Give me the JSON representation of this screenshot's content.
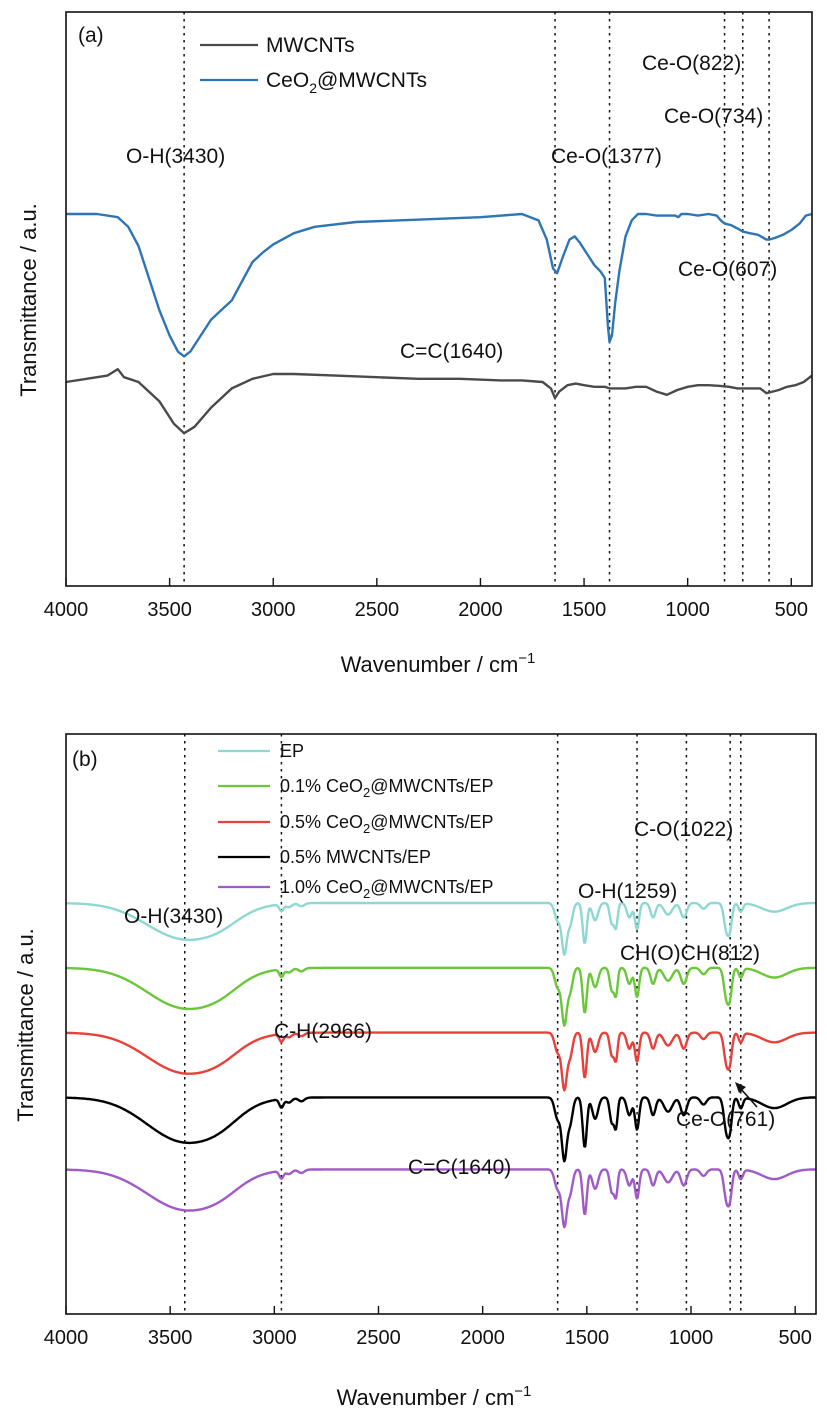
{
  "chart_data": [
    {
      "type": "line",
      "panel_label": "(a)",
      "xlabel": "Wavenumber / cm",
      "xlabel_sup": "−1",
      "ylabel": "Transmittance / a.u.",
      "xlim": [
        4000,
        400
      ],
      "x_reversed": true,
      "yticks_shown": false,
      "grid": false,
      "legend_position": "top-left",
      "x_ticks": [
        4000,
        3500,
        3000,
        2500,
        2000,
        1500,
        1000,
        500
      ],
      "x_tick_labels": [
        "4000",
        "3500",
        "3000",
        "2500",
        "2000",
        "1500",
        "1000",
        "500"
      ],
      "legend": [
        {
          "name": "MWCNTs",
          "color": "#4a4a4a"
        },
        {
          "name_main": "CeO",
          "name_sub": "2",
          "name_rest": "@MWCNTs",
          "color": "#2e75b6"
        }
      ],
      "reference_lines": [
        3430,
        1640,
        1377,
        822,
        734,
        607
      ],
      "annotations": [
        {
          "text": "O-H(3430)",
          "x": 3430
        },
        {
          "text": "Ce-O(1377)",
          "x": 1377
        },
        {
          "text": "Ce-O(822)",
          "x": 822
        },
        {
          "text": "Ce-O(734)",
          "x": 734
        },
        {
          "text": "Ce-O(607)",
          "x": 607
        },
        {
          "text": "C=C(1640)",
          "x": 1640
        }
      ],
      "series": [
        {
          "color": "#4a4a4a",
          "points": [
            [
              4000,
              0.6
            ],
            [
              3800,
              0.58
            ],
            [
              3750,
              0.56
            ],
            [
              3720,
              0.585
            ],
            [
              3650,
              0.6
            ],
            [
              3550,
              0.66
            ],
            [
              3480,
              0.73
            ],
            [
              3430,
              0.76
            ],
            [
              3380,
              0.74
            ],
            [
              3300,
              0.68
            ],
            [
              3200,
              0.62
            ],
            [
              3100,
              0.59
            ],
            [
              3000,
              0.575
            ],
            [
              2900,
              0.575
            ],
            [
              2700,
              0.58
            ],
            [
              2500,
              0.585
            ],
            [
              2300,
              0.59
            ],
            [
              2100,
              0.59
            ],
            [
              1900,
              0.595
            ],
            [
              1800,
              0.595
            ],
            [
              1700,
              0.6
            ],
            [
              1660,
              0.62
            ],
            [
              1640,
              0.65
            ],
            [
              1620,
              0.63
            ],
            [
              1580,
              0.61
            ],
            [
              1540,
              0.605
            ],
            [
              1500,
              0.61
            ],
            [
              1450,
              0.615
            ],
            [
              1400,
              0.615
            ],
            [
              1377,
              0.62
            ],
            [
              1350,
              0.62
            ],
            [
              1300,
              0.62
            ],
            [
              1250,
              0.615
            ],
            [
              1200,
              0.615
            ],
            [
              1150,
              0.63
            ],
            [
              1100,
              0.64
            ],
            [
              1050,
              0.625
            ],
            [
              1000,
              0.615
            ],
            [
              950,
              0.61
            ],
            [
              900,
              0.61
            ],
            [
              850,
              0.612
            ],
            [
              800,
              0.615
            ],
            [
              760,
              0.62
            ],
            [
              700,
              0.62
            ],
            [
              650,
              0.62
            ],
            [
              620,
              0.635
            ],
            [
              590,
              0.63
            ],
            [
              560,
              0.625
            ],
            [
              520,
              0.615
            ],
            [
              480,
              0.61
            ],
            [
              440,
              0.6
            ],
            [
              400,
              0.58
            ]
          ]
        },
        {
          "color": "#2e75b6",
          "points": [
            [
              4000,
              0.2
            ],
            [
              3850,
              0.2
            ],
            [
              3750,
              0.21
            ],
            [
              3700,
              0.24
            ],
            [
              3650,
              0.3
            ],
            [
              3600,
              0.4
            ],
            [
              3550,
              0.5
            ],
            [
              3500,
              0.58
            ],
            [
              3460,
              0.63
            ],
            [
              3430,
              0.645
            ],
            [
              3400,
              0.63
            ],
            [
              3350,
              0.58
            ],
            [
              3300,
              0.53
            ],
            [
              3250,
              0.5
            ],
            [
              3200,
              0.47
            ],
            [
              3150,
              0.41
            ],
            [
              3100,
              0.35
            ],
            [
              3050,
              0.32
            ],
            [
              3000,
              0.295
            ],
            [
              2900,
              0.26
            ],
            [
              2800,
              0.24
            ],
            [
              2600,
              0.225
            ],
            [
              2400,
              0.22
            ],
            [
              2200,
              0.215
            ],
            [
              2000,
              0.21
            ],
            [
              1800,
              0.2
            ],
            [
              1720,
              0.22
            ],
            [
              1680,
              0.28
            ],
            [
              1650,
              0.37
            ],
            [
              1630,
              0.385
            ],
            [
              1600,
              0.33
            ],
            [
              1570,
              0.28
            ],
            [
              1545,
              0.27
            ],
            [
              1520,
              0.29
            ],
            [
              1480,
              0.33
            ],
            [
              1450,
              0.36
            ],
            [
              1420,
              0.38
            ],
            [
              1400,
              0.4
            ],
            [
              1385,
              0.55
            ],
            [
              1377,
              0.6
            ],
            [
              1365,
              0.58
            ],
            [
              1350,
              0.48
            ],
            [
              1330,
              0.38
            ],
            [
              1300,
              0.27
            ],
            [
              1270,
              0.22
            ],
            [
              1240,
              0.2
            ],
            [
              1200,
              0.2
            ],
            [
              1150,
              0.205
            ],
            [
              1100,
              0.205
            ],
            [
              1060,
              0.205
            ],
            [
              1045,
              0.21
            ],
            [
              1030,
              0.2
            ],
            [
              1000,
              0.2
            ],
            [
              950,
              0.205
            ],
            [
              900,
              0.2
            ],
            [
              860,
              0.205
            ],
            [
              840,
              0.22
            ],
            [
              822,
              0.23
            ],
            [
              790,
              0.235
            ],
            [
              760,
              0.245
            ],
            [
              734,
              0.255
            ],
            [
              700,
              0.26
            ],
            [
              660,
              0.265
            ],
            [
              620,
              0.28
            ],
            [
              607,
              0.28
            ],
            [
              580,
              0.275
            ],
            [
              540,
              0.265
            ],
            [
              500,
              0.25
            ],
            [
              460,
              0.23
            ],
            [
              430,
              0.205
            ],
            [
              400,
              0.2
            ]
          ]
        }
      ]
    },
    {
      "type": "line",
      "panel_label": "(b)",
      "xlabel": "Wavenumber / cm",
      "xlabel_sup": "−1",
      "ylabel": "Transmittance / a.u.",
      "xlim": [
        4000,
        400
      ],
      "x_reversed": true,
      "yticks_shown": false,
      "grid": false,
      "legend_position": "top-center",
      "x_ticks": [
        4000,
        3500,
        3000,
        2500,
        2000,
        1500,
        1000,
        500
      ],
      "x_tick_labels": [
        "4000",
        "3500",
        "3000",
        "2500",
        "2000",
        "1500",
        "1000",
        "500"
      ],
      "legend": [
        {
          "name_main": "EP",
          "name_sub": "",
          "name_rest": "",
          "color": "#8ed8d2"
        },
        {
          "name_main": "0.1% CeO",
          "name_sub": "2",
          "name_rest": "@MWCNTs/EP",
          "color": "#6bc73a"
        },
        {
          "name_main": "0.5% CeO",
          "name_sub": "2",
          "name_rest": "@MWCNTs/EP",
          "color": "#e8403a"
        },
        {
          "name_main": "0.5% MWCNTs/EP",
          "name_sub": "",
          "name_rest": "",
          "color": "#000000"
        },
        {
          "name_main": "1.0% CeO",
          "name_sub": "2",
          "name_rest": "@MWCNTs/EP",
          "color": "#a05ac8"
        }
      ],
      "reference_lines": [
        3430,
        2966,
        1640,
        1259,
        1022,
        812,
        761
      ],
      "annotations": [
        {
          "text": "O-H(3430)",
          "x": 3430
        },
        {
          "text": "O-H(1259)",
          "x": 1259
        },
        {
          "text": "C-O(1022)",
          "x": 1022
        },
        {
          "text": "CH(O)CH(812)",
          "x": 812
        },
        {
          "text": "C-H(2966)",
          "x": 2966
        },
        {
          "text": "Ce-O(761)",
          "x": 761
        },
        {
          "text": "C=C(1640)",
          "x": 1640
        }
      ],
      "series_offsets": [
        0.0,
        0.18,
        0.36,
        0.54,
        0.74
      ],
      "series": [
        {
          "color": "#8ed8d2"
        },
        {
          "color": "#6bc73a"
        },
        {
          "color": "#e8403a"
        },
        {
          "color": "#000000"
        },
        {
          "color": "#a05ac8"
        }
      ]
    }
  ]
}
